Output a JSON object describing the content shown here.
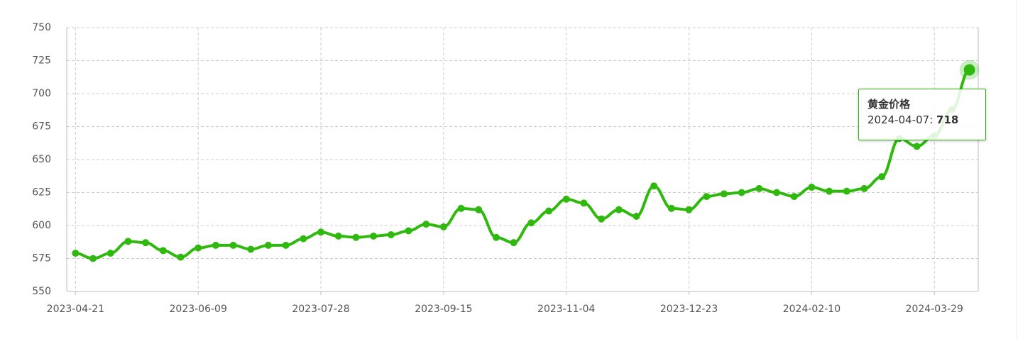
{
  "chart_data": {
    "type": "line",
    "categories": [
      "2023-04-21",
      null,
      null,
      null,
      null,
      null,
      null,
      "2023-06-09",
      null,
      null,
      null,
      null,
      null,
      null,
      "2023-07-28",
      null,
      null,
      null,
      null,
      null,
      null,
      "2023-09-15",
      null,
      null,
      null,
      null,
      null,
      null,
      "2023-11-04",
      null,
      null,
      null,
      null,
      null,
      null,
      "2023-12-23",
      null,
      null,
      null,
      null,
      null,
      null,
      "2024-02-10",
      null,
      null,
      null,
      null,
      null,
      null,
      "2024-03-29",
      null,
      "2024-04-07"
    ],
    "series": [
      {
        "name": "黄金价格",
        "color": "#2fb90f",
        "values": [
          579,
          575,
          579,
          588,
          587,
          581,
          576,
          583,
          585,
          585,
          582,
          585,
          585,
          590,
          595,
          592,
          591,
          592,
          593,
          596,
          601,
          599,
          613,
          612,
          591,
          587,
          602,
          611,
          620,
          617,
          605,
          612,
          607,
          630,
          613,
          612,
          622,
          624,
          625,
          628,
          625,
          622,
          629,
          626,
          626,
          628,
          637,
          666,
          660,
          668,
          688,
          718
        ]
      }
    ],
    "ylim": [
      550,
      750
    ],
    "yticks": [
      550,
      575,
      600,
      625,
      650,
      675,
      700,
      725,
      750
    ],
    "grid": true
  }
}
